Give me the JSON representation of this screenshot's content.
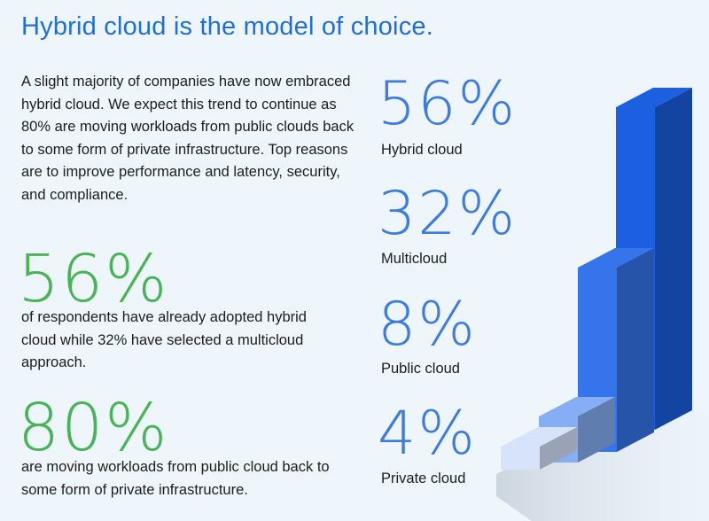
{
  "title": "Hybrid cloud is the model of choice.",
  "intro": "A slight majority of companies have now embraced hybrid cloud. We expect this trend to continue as 80% are moving workloads from public clouds back to some form of private infrastructure. Top reasons are to improve performance and latency, security, and compliance.",
  "stats": [
    {
      "value": "56%",
      "text": "of respondents have already adopted hybrid cloud while 32% have selected a multicloud approach."
    },
    {
      "value": "80%",
      "text": "are moving workloads from public cloud back to some form of private infrastructure."
    }
  ],
  "chart_data": {
    "type": "bar",
    "title": "Hybrid cloud is the model of choice.",
    "categories": [
      "Hybrid cloud",
      "Multicloud",
      "Public cloud",
      "Private cloud"
    ],
    "values": [
      56,
      32,
      8,
      4
    ],
    "value_labels": [
      "56%",
      "32%",
      "8%",
      "4%"
    ],
    "colors": [
      "#1c5fe0",
      "#3574ea",
      "#86aef5",
      "#d6e3fb"
    ],
    "ylim": [
      0,
      60
    ],
    "xlabel": "",
    "ylabel": "",
    "grid": false,
    "legend": "left"
  }
}
